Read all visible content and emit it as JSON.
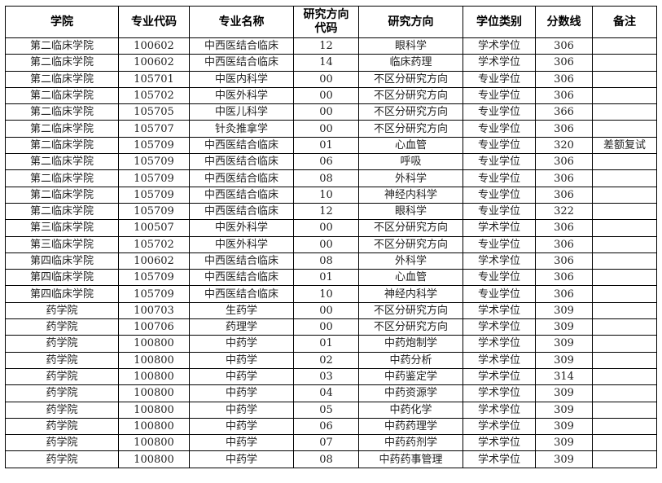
{
  "headers": [
    "学院",
    "专业代码",
    "专业名称",
    "研究方向代码",
    "研究方向",
    "学位类别",
    "分数线",
    "备注"
  ],
  "rows": [
    [
      "第二临床学院",
      "100602",
      "中西医结合临床",
      "12",
      "眼科学",
      "学术学位",
      "306",
      ""
    ],
    [
      "第二临床学院",
      "100602",
      "中西医结合临床",
      "14",
      "临床药理",
      "学术学位",
      "306",
      ""
    ],
    [
      "第二临床学院",
      "105701",
      "中医内科学",
      "00",
      "不区分研究方向",
      "专业学位",
      "306",
      ""
    ],
    [
      "第二临床学院",
      "105702",
      "中医外科学",
      "00",
      "不区分研究方向",
      "专业学位",
      "306",
      ""
    ],
    [
      "第二临床学院",
      "105705",
      "中医儿科学",
      "00",
      "不区分研究方向",
      "专业学位",
      "366",
      ""
    ],
    [
      "第二临床学院",
      "105707",
      "针灸推拿学",
      "00",
      "不区分研究方向",
      "专业学位",
      "306",
      ""
    ],
    [
      "第二临床学院",
      "105709",
      "中西医结合临床",
      "01",
      "心血管",
      "专业学位",
      "320",
      "差额复试"
    ],
    [
      "第二临床学院",
      "105709",
      "中西医结合临床",
      "06",
      "呼吸",
      "专业学位",
      "306",
      ""
    ],
    [
      "第二临床学院",
      "105709",
      "中西医结合临床",
      "08",
      "外科学",
      "专业学位",
      "306",
      ""
    ],
    [
      "第二临床学院",
      "105709",
      "中西医结合临床",
      "10",
      "神经内科学",
      "专业学位",
      "306",
      ""
    ],
    [
      "第二临床学院",
      "105709",
      "中西医结合临床",
      "12",
      "眼科学",
      "专业学位",
      "322",
      ""
    ],
    [
      "第三临床学院",
      "100507",
      "中医外科学",
      "00",
      "不区分研究方向",
      "学术学位",
      "306",
      ""
    ],
    [
      "第三临床学院",
      "105702",
      "中医外科学",
      "00",
      "不区分研究方向",
      "专业学位",
      "306",
      ""
    ],
    [
      "第四临床学院",
      "100602",
      "中西医结合临床",
      "08",
      "外科学",
      "学术学位",
      "306",
      ""
    ],
    [
      "第四临床学院",
      "105709",
      "中西医结合临床",
      "01",
      "心血管",
      "专业学位",
      "306",
      ""
    ],
    [
      "第四临床学院",
      "105709",
      "中西医结合临床",
      "10",
      "神经内科学",
      "专业学位",
      "306",
      ""
    ],
    [
      "药学院",
      "100703",
      "生药学",
      "00",
      "不区分研究方向",
      "学术学位",
      "309",
      ""
    ],
    [
      "药学院",
      "100706",
      "药理学",
      "00",
      "不区分研究方向",
      "学术学位",
      "309",
      ""
    ],
    [
      "药学院",
      "100800",
      "中药学",
      "01",
      "中药炮制学",
      "学术学位",
      "309",
      ""
    ],
    [
      "药学院",
      "100800",
      "中药学",
      "02",
      "中药分析",
      "学术学位",
      "309",
      ""
    ],
    [
      "药学院",
      "100800",
      "中药学",
      "03",
      "中药鉴定学",
      "学术学位",
      "314",
      ""
    ],
    [
      "药学院",
      "100800",
      "中药学",
      "04",
      "中药资源学",
      "学术学位",
      "309",
      ""
    ],
    [
      "药学院",
      "100800",
      "中药学",
      "05",
      "中药化学",
      "学术学位",
      "309",
      ""
    ],
    [
      "药学院",
      "100800",
      "中药学",
      "06",
      "中药药理学",
      "学术学位",
      "309",
      ""
    ],
    [
      "药学院",
      "100800",
      "中药学",
      "07",
      "中药药剂学",
      "学术学位",
      "309",
      ""
    ],
    [
      "药学院",
      "100800",
      "中药学",
      "08",
      "中药药事管理",
      "学术学位",
      "309",
      ""
    ]
  ]
}
